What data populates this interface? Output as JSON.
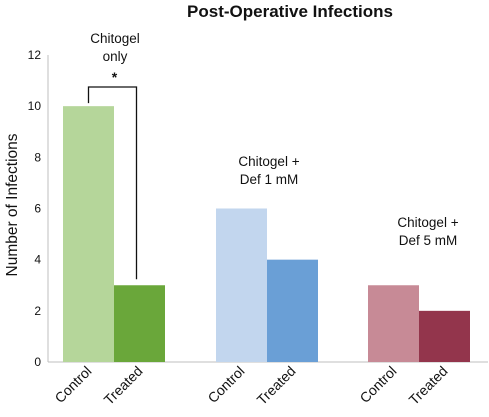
{
  "chart_data": {
    "type": "bar",
    "title": "Post-Operative Infections",
    "ylabel": "Number of Infections",
    "xlabel": "",
    "ylim": [
      0,
      12
    ],
    "yticks": [
      0,
      2,
      4,
      6,
      8,
      10,
      12
    ],
    "grid": false,
    "groups": [
      {
        "label_lines": [
          "Chitogel",
          "only"
        ],
        "bars": [
          {
            "category": "Control",
            "value": 10,
            "color": "#b5d69a"
          },
          {
            "category": "Treated",
            "value": 3,
            "color": "#6aa73a"
          }
        ],
        "significance": "*"
      },
      {
        "label_lines": [
          "Chitogel +",
          "Def 1 mM"
        ],
        "bars": [
          {
            "category": "Control",
            "value": 6,
            "color": "#c2d6ee"
          },
          {
            "category": "Treated",
            "value": 4,
            "color": "#6a9fd6"
          }
        ]
      },
      {
        "label_lines": [
          "Chitogel +",
          "Def 5 mM"
        ],
        "bars": [
          {
            "category": "Control",
            "value": 3,
            "color": "#c78a96"
          },
          {
            "category": "Treated",
            "value": 2,
            "color": "#93354c"
          }
        ]
      }
    ]
  }
}
